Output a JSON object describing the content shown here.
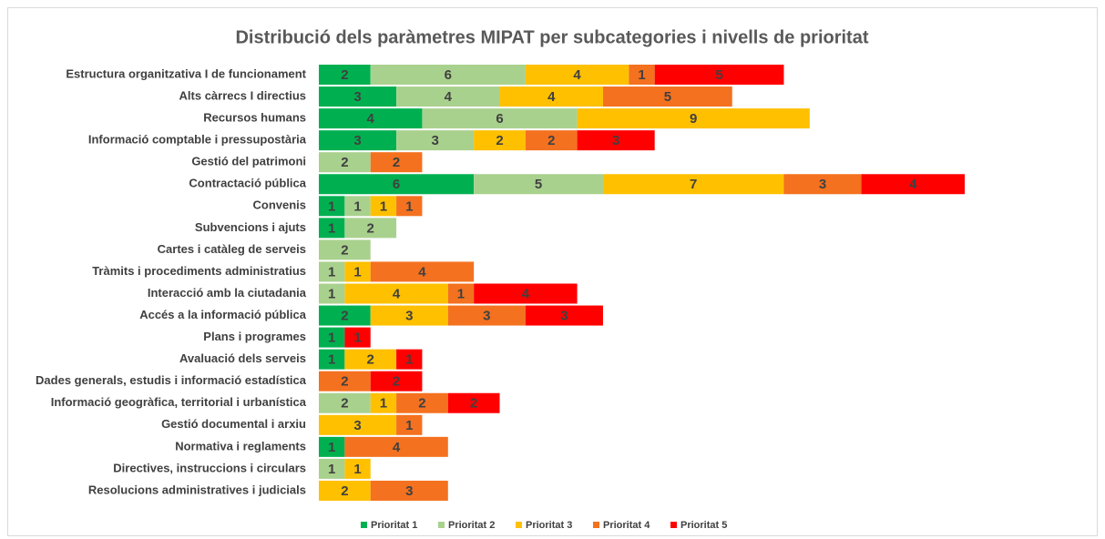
{
  "chart_data": {
    "type": "stacked_barh",
    "title": "Distribució dels paràmetres MIPAT per subcategories i nivells de prioritat",
    "categories": [
      "Estructura organitzativa I de funcionament",
      "Alts càrrecs I directius",
      "Recursos humans",
      "Informació comptable i pressupostària",
      "Gestió del patrimoni",
      "Contractació pública",
      "Convenis",
      "Subvencions i ajuts",
      "Cartes i catàleg de serveis",
      "Tràmits i procediments administratius",
      "Interacció amb la ciutadania",
      "Accés a la informació pública",
      "Plans i programes",
      "Avaluació dels serveis",
      "Dades generals, estudis i informació estadística",
      "Informació geogràfica, territorial i urbanística",
      "Gestió documental i arxiu",
      "Normativa i reglaments",
      "Directives, instruccions i circulars",
      "Resolucions administratives i judicials"
    ],
    "series": [
      {
        "name": "Prioritat 1",
        "color": "#00b050",
        "values": [
          2,
          3,
          4,
          3,
          null,
          6,
          1,
          1,
          null,
          null,
          null,
          2,
          1,
          1,
          null,
          null,
          null,
          1,
          null,
          null
        ]
      },
      {
        "name": "Prioritat 2",
        "color": "#a9d18e",
        "values": [
          6,
          4,
          6,
          3,
          2,
          5,
          1,
          2,
          2,
          1,
          1,
          null,
          null,
          null,
          null,
          2,
          null,
          null,
          1,
          null
        ]
      },
      {
        "name": "Prioritat 3",
        "color": "#ffc000",
        "values": [
          4,
          4,
          9,
          2,
          null,
          7,
          1,
          null,
          null,
          1,
          4,
          3,
          null,
          2,
          null,
          1,
          3,
          null,
          1,
          2
        ]
      },
      {
        "name": "Prioritat 4",
        "color": "#f4711f",
        "values": [
          1,
          5,
          null,
          2,
          2,
          3,
          1,
          null,
          null,
          4,
          1,
          3,
          null,
          null,
          2,
          2,
          1,
          4,
          null,
          3
        ]
      },
      {
        "name": "Prioritat 5",
        "color": "#ff0000",
        "values": [
          5,
          null,
          null,
          3,
          null,
          4,
          null,
          null,
          null,
          null,
          4,
          3,
          1,
          1,
          2,
          2,
          null,
          null,
          null,
          null
        ]
      }
    ]
  }
}
